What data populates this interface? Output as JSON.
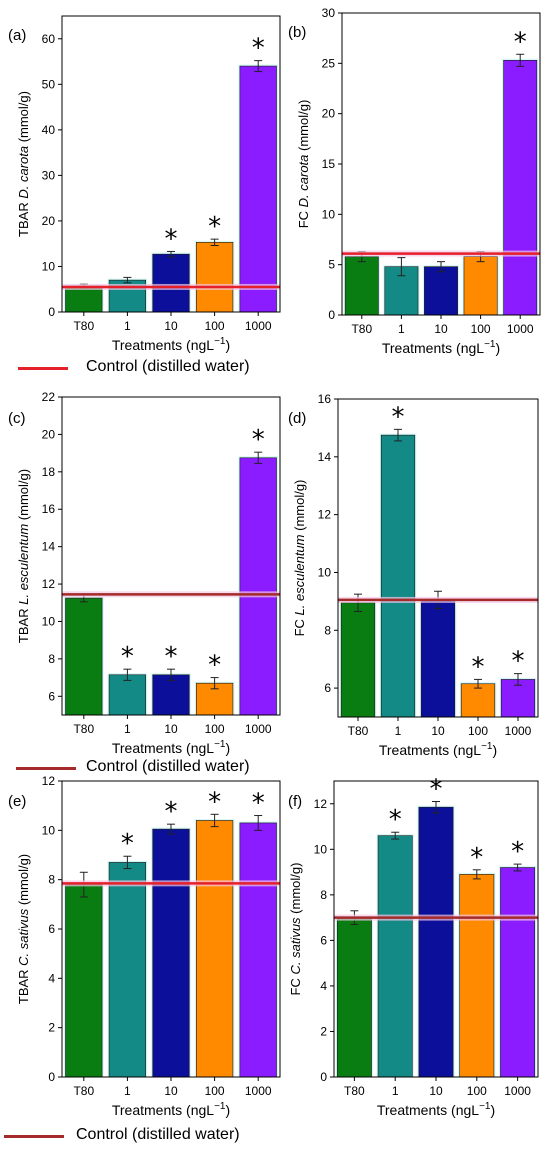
{
  "legend": {
    "label": "Control (distilled water)",
    "line_color": "#e5202a",
    "line_color_alt": "#a52a2a"
  },
  "colors": [
    "#0a7d12",
    "#138a86",
    "#0b0f9a",
    "#ff8a00",
    "#8a1cff"
  ],
  "chart_data": [
    {
      "panel": "(a)",
      "type": "bar",
      "categories": [
        "T80",
        "1",
        "10",
        "100",
        "1000"
      ],
      "values": [
        5.7,
        7.0,
        12.7,
        15.3,
        54.0
      ],
      "errors": [
        0.4,
        0.6,
        0.6,
        0.7,
        1.2
      ],
      "significant": [
        false,
        false,
        true,
        true,
        true
      ],
      "control": 5.5,
      "control_color": "#e5202a",
      "ylim": [
        0,
        65
      ],
      "yticks": [
        0,
        10,
        20,
        30,
        40,
        50,
        60
      ],
      "ylabel_pre": "TBAR ",
      "ylabel_it": "D. carota",
      "ylabel_post": " (mmol/g)",
      "xlabel": "Treatments (ngL",
      "xlabel_sup": "−1",
      "xlabel_end": ")"
    },
    {
      "panel": "(b)",
      "type": "bar",
      "categories": [
        "T80",
        "1",
        "10",
        "100",
        "1000"
      ],
      "values": [
        5.8,
        4.8,
        4.8,
        5.8,
        25.3
      ],
      "errors": [
        0.5,
        0.9,
        0.5,
        0.5,
        0.6
      ],
      "significant": [
        false,
        false,
        false,
        false,
        true
      ],
      "control": 6.1,
      "control_color": "#e5202a",
      "ylim": [
        0,
        30
      ],
      "yticks": [
        0,
        5,
        10,
        15,
        20,
        25,
        30
      ],
      "ylabel_pre": "FC ",
      "ylabel_it": "D. carota",
      "ylabel_post": " (mmol/g)",
      "xlabel": "Treatments (ngL",
      "xlabel_sup": "−1",
      "xlabel_end": ")"
    },
    {
      "panel": "(c)",
      "type": "bar",
      "categories": [
        "T80",
        "1",
        "10",
        "100",
        "1000"
      ],
      "values": [
        11.25,
        7.15,
        7.15,
        6.7,
        18.75
      ],
      "errors": [
        0.2,
        0.3,
        0.3,
        0.3,
        0.3
      ],
      "significant": [
        false,
        true,
        true,
        true,
        true
      ],
      "control": 11.45,
      "control_color": "#a52a2a",
      "ylim": [
        5,
        22
      ],
      "yticks": [
        6,
        8,
        10,
        12,
        14,
        16,
        18,
        20,
        22
      ],
      "ylabel_pre": "TBAR ",
      "ylabel_it": "L. esculentum",
      "ylabel_post": " (mmol/g)",
      "xlabel": "Treatments (ngL",
      "xlabel_sup": "−1",
      "xlabel_end": ")"
    },
    {
      "panel": "(d)",
      "type": "bar",
      "categories": [
        "T80",
        "1",
        "10",
        "100",
        "1000"
      ],
      "values": [
        8.95,
        14.75,
        9.05,
        6.15,
        6.3
      ],
      "errors": [
        0.3,
        0.2,
        0.3,
        0.15,
        0.2
      ],
      "significant": [
        false,
        true,
        false,
        true,
        true
      ],
      "control": 9.05,
      "control_color": "#a52a2a",
      "ylim": [
        5,
        16
      ],
      "yticks": [
        6,
        8,
        10,
        12,
        14,
        16
      ],
      "ylabel_pre": "FC ",
      "ylabel_it": "L. esculentum",
      "ylabel_post": " (mmol/g)",
      "xlabel": "Treatments (ngL",
      "xlabel_sup": "−1",
      "xlabel_end": ")"
    },
    {
      "panel": "(e)",
      "type": "bar",
      "categories": [
        "T80",
        "1",
        "10",
        "100",
        "1000"
      ],
      "values": [
        7.8,
        8.7,
        10.05,
        10.4,
        10.3
      ],
      "errors": [
        0.5,
        0.25,
        0.2,
        0.25,
        0.3
      ],
      "significant": [
        false,
        true,
        true,
        true,
        true
      ],
      "control": 7.85,
      "control_color": "#e5202a",
      "ylim": [
        0,
        12
      ],
      "yticks": [
        0,
        2,
        4,
        6,
        8,
        10,
        12
      ],
      "ylabel_pre": "TBAR  ",
      "ylabel_it": "C. sativus",
      "ylabel_post": " (mmol/g)",
      "xlabel": "Treatments (ngL",
      "xlabel_sup": "−1",
      "xlabel_end": ")"
    },
    {
      "panel": "(f)",
      "type": "bar",
      "categories": [
        "T80",
        "1",
        "10",
        "100",
        "1000"
      ],
      "values": [
        7.0,
        10.6,
        11.85,
        8.9,
        9.2
      ],
      "errors": [
        0.3,
        0.15,
        0.25,
        0.2,
        0.15
      ],
      "significant": [
        false,
        true,
        true,
        true,
        true
      ],
      "control": 7.0,
      "control_color": "#a52a2a",
      "ylim": [
        0,
        13
      ],
      "yticks": [
        0,
        2,
        4,
        6,
        8,
        10,
        12
      ],
      "ylabel_pre": "FC  ",
      "ylabel_it": "C. sativus",
      "ylabel_post": " (mmol/g)",
      "xlabel": "Treatments (ngL",
      "xlabel_sup": "−1",
      "xlabel_end": ")"
    }
  ]
}
